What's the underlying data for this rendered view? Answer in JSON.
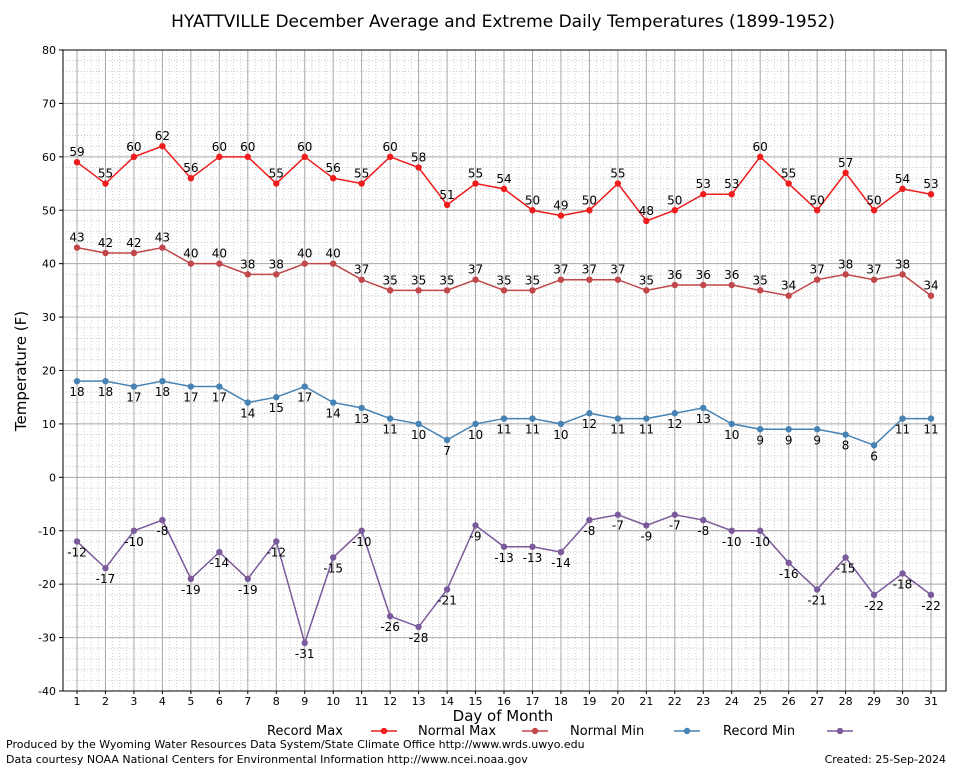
{
  "chart_data": {
    "type": "line",
    "title": "HYATTVILLE December Average and Extreme Daily Temperatures (1899-1952)",
    "xlabel": "Day of Month",
    "ylabel": "Temperature (F)",
    "x": [
      1,
      2,
      3,
      4,
      5,
      6,
      7,
      8,
      9,
      10,
      11,
      12,
      13,
      14,
      15,
      16,
      17,
      18,
      19,
      20,
      21,
      22,
      23,
      24,
      25,
      26,
      27,
      28,
      29,
      30,
      31
    ],
    "ylim": [
      -40,
      80
    ],
    "yticks": [
      -40,
      -30,
      -20,
      -10,
      0,
      10,
      20,
      30,
      40,
      50,
      60,
      70,
      80
    ],
    "grid": true,
    "legend_position": "bottom",
    "series": [
      {
        "name": "Record Max",
        "color": "#ee1c1c",
        "label_position": "above",
        "values": [
          59,
          55,
          60,
          62,
          56,
          60,
          60,
          55,
          60,
          56,
          55,
          60,
          58,
          51,
          55,
          54,
          50,
          49,
          50,
          55,
          48,
          50,
          53,
          53,
          60,
          55,
          50,
          57,
          50,
          54,
          53
        ]
      },
      {
        "name": "Normal Max",
        "color": "#c0474a",
        "label_position": "above",
        "values": [
          43,
          42,
          42,
          43,
          40,
          40,
          38,
          38,
          40,
          40,
          37,
          35,
          35,
          35,
          37,
          35,
          35,
          37,
          37,
          37,
          35,
          36,
          36,
          36,
          35,
          34,
          37,
          38,
          37,
          38,
          34
        ]
      },
      {
        "name": "Normal Min",
        "color": "#4682b4",
        "label_position": "below",
        "values": [
          18,
          18,
          17,
          18,
          17,
          17,
          14,
          15,
          17,
          14,
          13,
          11,
          10,
          7,
          10,
          11,
          11,
          10,
          12,
          11,
          11,
          12,
          13,
          10,
          9,
          9,
          9,
          8,
          6,
          11,
          11
        ]
      },
      {
        "name": "Record Min",
        "color": "#7b5a9c",
        "label_position": "below",
        "values": [
          -12,
          -17,
          -10,
          -8,
          -19,
          -14,
          -19,
          -12,
          -31,
          -15,
          -10,
          -26,
          -28,
          -21,
          -9,
          -13,
          -13,
          -14,
          -8,
          -7,
          -9,
          -7,
          -8,
          -10,
          -10,
          -16,
          -21,
          -15,
          -22,
          -18,
          -22
        ]
      }
    ]
  },
  "footer": {
    "produced_by": "Produced by the Wyoming Water Resources Data System/State Climate Office http://www.wrds.uwyo.edu",
    "data_courtesy": "Data courtesy NOAA National Centers for Environmental Information http://www.ncei.noaa.gov",
    "created": "Created:  25-Sep-2024"
  }
}
